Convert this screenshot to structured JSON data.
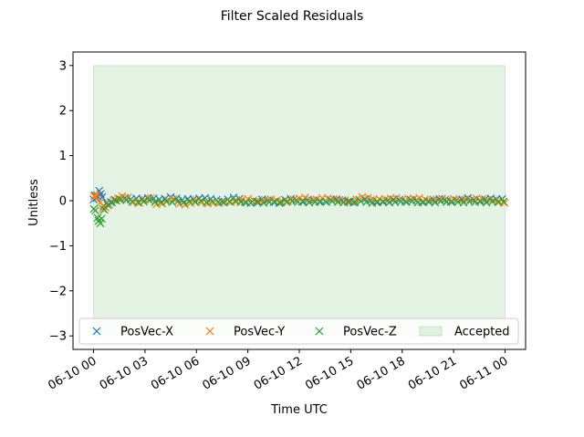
{
  "chart_data": {
    "type": "scatter",
    "title": "Filter Scaled Residuals",
    "xlabel": "Time UTC",
    "ylabel": "Unitless",
    "x_start": "2020-06-10 00:00",
    "x_end": "2020-06-11 00:00",
    "xlim": [
      "2020-06-09 22:48",
      "2020-06-11 01:12"
    ],
    "ylim": [
      -3.3,
      3.3
    ],
    "x_ticks": [
      {
        "t": "2020-06-10 00:00",
        "label": "06-10 00"
      },
      {
        "t": "2020-06-10 03:00",
        "label": "06-10 03"
      },
      {
        "t": "2020-06-10 06:00",
        "label": "06-10 06"
      },
      {
        "t": "2020-06-10 09:00",
        "label": "06-10 09"
      },
      {
        "t": "2020-06-10 12:00",
        "label": "06-10 12"
      },
      {
        "t": "2020-06-10 15:00",
        "label": "06-10 15"
      },
      {
        "t": "2020-06-10 18:00",
        "label": "06-10 18"
      },
      {
        "t": "2020-06-10 21:00",
        "label": "06-10 21"
      },
      {
        "t": "2020-06-11 00:00",
        "label": "06-11 00"
      }
    ],
    "y_ticks": [
      3,
      2,
      1,
      0,
      -1,
      -2,
      -3
    ],
    "y_tick_labels": [
      "3",
      "2",
      "1",
      "0",
      "−1",
      "−2",
      "−3"
    ],
    "accepted_band": {
      "name": "Accepted",
      "ymin": -3,
      "ymax": 3,
      "x_from": "2020-06-10 00:00",
      "x_to": "2020-06-11 00:00",
      "color": "#2ca02c"
    },
    "grid": false,
    "legend": {
      "placement": "lower-center",
      "columns": 4
    },
    "series": [
      {
        "name": "PosVec-X",
        "color": "#1f77b4",
        "points": [
          [
            "2020-06-10 00:00",
            0.03
          ],
          [
            "2020-06-10 00:05",
            0.12
          ],
          [
            "2020-06-10 00:10",
            0.06
          ],
          [
            "2020-06-10 00:15",
            0.1
          ],
          [
            "2020-06-10 00:20",
            0.22
          ],
          [
            "2020-06-10 00:25",
            0.15
          ],
          [
            "2020-06-10 00:30",
            0.08
          ],
          [
            "2020-06-10 00:35",
            -0.12
          ],
          [
            "2020-06-10 00:45",
            -0.05
          ],
          [
            "2020-06-10 01:00",
            -0.03
          ],
          [
            "2020-06-10 01:15",
            0.02
          ],
          [
            "2020-06-10 01:30",
            0.04
          ],
          [
            "2020-06-10 01:50",
            0.06
          ],
          [
            "2020-06-10 02:10",
            0.03
          ],
          [
            "2020-06-10 02:30",
            0.05
          ],
          [
            "2020-06-10 02:50",
            0.04
          ],
          [
            "2020-06-10 03:10",
            0.06
          ],
          [
            "2020-06-10 03:30",
            0.05
          ],
          [
            "2020-06-10 03:50",
            0.03
          ],
          [
            "2020-06-10 04:10",
            0.04
          ],
          [
            "2020-06-10 04:30",
            0.08
          ],
          [
            "2020-06-10 04:50",
            0.05
          ],
          [
            "2020-06-10 05:10",
            0.02
          ],
          [
            "2020-06-10 05:30",
            0.04
          ],
          [
            "2020-06-10 05:50",
            0.03
          ],
          [
            "2020-06-10 06:10",
            0.05
          ],
          [
            "2020-06-10 06:30",
            0.06
          ],
          [
            "2020-06-10 06:50",
            0.04
          ],
          [
            "2020-06-10 07:10",
            0.02
          ],
          [
            "2020-06-10 07:30",
            -0.02
          ],
          [
            "2020-06-10 07:50",
            0.03
          ],
          [
            "2020-06-10 08:10",
            0.07
          ],
          [
            "2020-06-10 08:30",
            0.04
          ],
          [
            "2020-06-10 08:50",
            -0.03
          ],
          [
            "2020-06-10 09:10",
            -0.05
          ],
          [
            "2020-06-10 09:30",
            -0.02
          ],
          [
            "2020-06-10 09:50",
            0.03
          ],
          [
            "2020-06-10 10:10",
            0.01
          ],
          [
            "2020-06-10 10:30",
            -0.03
          ],
          [
            "2020-06-10 10:50",
            -0.05
          ],
          [
            "2020-06-10 11:10",
            0.02
          ],
          [
            "2020-06-10 11:30",
            0.04
          ],
          [
            "2020-06-10 11:50",
            0.01
          ],
          [
            "2020-06-10 12:10",
            -0.02
          ],
          [
            "2020-06-10 12:30",
            0.02
          ],
          [
            "2020-06-10 12:50",
            0.01
          ],
          [
            "2020-06-10 13:10",
            -0.02
          ],
          [
            "2020-06-10 13:30",
            -0.01
          ],
          [
            "2020-06-10 13:50",
            0.02
          ],
          [
            "2020-06-10 14:10",
            0.03
          ],
          [
            "2020-06-10 14:30",
            0.01
          ],
          [
            "2020-06-10 14:50",
            -0.02
          ],
          [
            "2020-06-10 15:10",
            -0.04
          ],
          [
            "2020-06-10 15:30",
            0.02
          ],
          [
            "2020-06-10 15:50",
            0.04
          ],
          [
            "2020-06-10 16:10",
            0.01
          ],
          [
            "2020-06-10 16:30",
            -0.03
          ],
          [
            "2020-06-10 16:50",
            -0.02
          ],
          [
            "2020-06-10 17:10",
            0.01
          ],
          [
            "2020-06-10 17:30",
            0.03
          ],
          [
            "2020-06-10 17:50",
            0.02
          ],
          [
            "2020-06-10 18:10",
            -0.01
          ],
          [
            "2020-06-10 18:30",
            0.02
          ],
          [
            "2020-06-10 18:50",
            0.01
          ],
          [
            "2020-06-10 19:10",
            -0.03
          ],
          [
            "2020-06-10 19:30",
            -0.01
          ],
          [
            "2020-06-10 19:50",
            0.02
          ],
          [
            "2020-06-10 20:10",
            0.04
          ],
          [
            "2020-06-10 20:30",
            0.02
          ],
          [
            "2020-06-10 20:50",
            -0.02
          ],
          [
            "2020-06-10 21:10",
            0.01
          ],
          [
            "2020-06-10 21:30",
            0.03
          ],
          [
            "2020-06-10 21:50",
            0.06
          ],
          [
            "2020-06-10 22:10",
            0.02
          ],
          [
            "2020-06-10 22:30",
            -0.01
          ],
          [
            "2020-06-10 22:50",
            0.03
          ],
          [
            "2020-06-10 23:10",
            0.05
          ],
          [
            "2020-06-10 23:30",
            0.03
          ],
          [
            "2020-06-10 23:50",
            0.04
          ]
        ]
      },
      {
        "name": "PosVec-Y",
        "color": "#ff7f0e",
        "points": [
          [
            "2020-06-10 00:02",
            0.1
          ],
          [
            "2020-06-10 00:07",
            0.08
          ],
          [
            "2020-06-10 00:12",
            0.13
          ],
          [
            "2020-06-10 00:22",
            -0.05
          ],
          [
            "2020-06-10 00:32",
            -0.18
          ],
          [
            "2020-06-10 00:42",
            -0.15
          ],
          [
            "2020-06-10 00:55",
            -0.08
          ],
          [
            "2020-06-10 01:10",
            0.01
          ],
          [
            "2020-06-10 01:25",
            0.05
          ],
          [
            "2020-06-10 01:40",
            0.1
          ],
          [
            "2020-06-10 02:00",
            0.07
          ],
          [
            "2020-06-10 02:20",
            -0.03
          ],
          [
            "2020-06-10 02:40",
            -0.05
          ],
          [
            "2020-06-10 03:00",
            0.02
          ],
          [
            "2020-06-10 03:20",
            0.06
          ],
          [
            "2020-06-10 03:40",
            -0.08
          ],
          [
            "2020-06-10 04:00",
            -0.06
          ],
          [
            "2020-06-10 04:20",
            0.01
          ],
          [
            "2020-06-10 04:40",
            0.04
          ],
          [
            "2020-06-10 05:00",
            -0.07
          ],
          [
            "2020-06-10 05:20",
            -0.09
          ],
          [
            "2020-06-10 05:40",
            -0.05
          ],
          [
            "2020-06-10 06:00",
            0.02
          ],
          [
            "2020-06-10 06:20",
            -0.03
          ],
          [
            "2020-06-10 06:40",
            -0.06
          ],
          [
            "2020-06-10 07:00",
            -0.04
          ],
          [
            "2020-06-10 07:20",
            -0.05
          ],
          [
            "2020-06-10 07:40",
            -0.02
          ],
          [
            "2020-06-10 08:00",
            -0.03
          ],
          [
            "2020-06-10 08:20",
            -0.01
          ],
          [
            "2020-06-10 08:40",
            0.02
          ],
          [
            "2020-06-10 09:00",
            0.04
          ],
          [
            "2020-06-10 09:20",
            0.01
          ],
          [
            "2020-06-10 09:40",
            -0.02
          ],
          [
            "2020-06-10 10:00",
            0.02
          ],
          [
            "2020-06-10 10:20",
            0.03
          ],
          [
            "2020-06-10 10:40",
            0.01
          ],
          [
            "2020-06-10 11:00",
            -0.02
          ],
          [
            "2020-06-10 11:20",
            -0.01
          ],
          [
            "2020-06-10 11:40",
            0.03
          ],
          [
            "2020-06-10 12:00",
            0.05
          ],
          [
            "2020-06-10 12:20",
            0.07
          ],
          [
            "2020-06-10 12:40",
            0.02
          ],
          [
            "2020-06-10 13:00",
            0.03
          ],
          [
            "2020-06-10 13:20",
            0.06
          ],
          [
            "2020-06-10 13:40",
            0.05
          ],
          [
            "2020-06-10 14:00",
            0.04
          ],
          [
            "2020-06-10 14:20",
            0.02
          ],
          [
            "2020-06-10 14:40",
            0.01
          ],
          [
            "2020-06-10 15:00",
            -0.02
          ],
          [
            "2020-06-10 15:20",
            0.03
          ],
          [
            "2020-06-10 15:40",
            0.08
          ],
          [
            "2020-06-10 16:00",
            0.06
          ],
          [
            "2020-06-10 16:20",
            0.02
          ],
          [
            "2020-06-10 16:40",
            0.04
          ],
          [
            "2020-06-10 17:00",
            0.03
          ],
          [
            "2020-06-10 17:20",
            0.05
          ],
          [
            "2020-06-10 17:40",
            0.06
          ],
          [
            "2020-06-10 18:00",
            0.02
          ],
          [
            "2020-06-10 18:20",
            0.05
          ],
          [
            "2020-06-10 18:40",
            0.04
          ],
          [
            "2020-06-10 19:00",
            0.06
          ],
          [
            "2020-06-10 19:20",
            0.03
          ],
          [
            "2020-06-10 19:40",
            0.01
          ],
          [
            "2020-06-10 20:00",
            0.03
          ],
          [
            "2020-06-10 20:20",
            0.05
          ],
          [
            "2020-06-10 20:40",
            0.02
          ],
          [
            "2020-06-10 21:00",
            0.04
          ],
          [
            "2020-06-10 21:20",
            0.01
          ],
          [
            "2020-06-10 21:40",
            0.03
          ],
          [
            "2020-06-10 22:00",
            0.02
          ],
          [
            "2020-06-10 22:20",
            0.05
          ],
          [
            "2020-06-10 22:40",
            0.04
          ],
          [
            "2020-06-10 23:00",
            0.02
          ],
          [
            "2020-06-10 23:20",
            0.01
          ],
          [
            "2020-06-10 23:40",
            -0.02
          ],
          [
            "2020-06-10 23:58",
            -0.05
          ]
        ]
      },
      {
        "name": "PosVec-Z",
        "color": "#2ca02c",
        "points": [
          [
            "2020-06-10 00:01",
            -0.18
          ],
          [
            "2020-06-10 00:06",
            -0.22
          ],
          [
            "2020-06-10 00:14",
            -0.38
          ],
          [
            "2020-06-10 00:18",
            -0.45
          ],
          [
            "2020-06-10 00:24",
            -0.5
          ],
          [
            "2020-06-10 00:28",
            -0.4
          ],
          [
            "2020-06-10 00:38",
            -0.2
          ],
          [
            "2020-06-10 00:50",
            -0.1
          ],
          [
            "2020-06-10 01:05",
            -0.04
          ],
          [
            "2020-06-10 01:20",
            0.0
          ],
          [
            "2020-06-10 01:35",
            0.03
          ],
          [
            "2020-06-10 01:55",
            0.01
          ],
          [
            "2020-06-10 02:15",
            -0.02
          ],
          [
            "2020-06-10 02:35",
            -0.04
          ],
          [
            "2020-06-10 02:55",
            -0.02
          ],
          [
            "2020-06-10 03:15",
            0.01
          ],
          [
            "2020-06-10 03:35",
            -0.03
          ],
          [
            "2020-06-10 03:55",
            -0.04
          ],
          [
            "2020-06-10 04:15",
            -0.02
          ],
          [
            "2020-06-10 04:35",
            -0.03
          ],
          [
            "2020-06-10 04:55",
            -0.01
          ],
          [
            "2020-06-10 05:15",
            -0.04
          ],
          [
            "2020-06-10 05:35",
            -0.02
          ],
          [
            "2020-06-10 05:55",
            -0.03
          ],
          [
            "2020-06-10 06:15",
            -0.01
          ],
          [
            "2020-06-10 06:35",
            -0.04
          ],
          [
            "2020-06-10 06:55",
            -0.02
          ],
          [
            "2020-06-10 07:15",
            -0.03
          ],
          [
            "2020-06-10 07:35",
            -0.04
          ],
          [
            "2020-06-10 07:55",
            -0.02
          ],
          [
            "2020-06-10 08:15",
            -0.01
          ],
          [
            "2020-06-10 08:35",
            -0.03
          ],
          [
            "2020-06-10 08:55",
            -0.04
          ],
          [
            "2020-06-10 09:15",
            -0.02
          ],
          [
            "2020-06-10 09:35",
            -0.03
          ],
          [
            "2020-06-10 09:55",
            -0.05
          ],
          [
            "2020-06-10 10:15",
            -0.03
          ],
          [
            "2020-06-10 10:35",
            -0.02
          ],
          [
            "2020-06-10 10:55",
            -0.04
          ],
          [
            "2020-06-10 11:15",
            -0.03
          ],
          [
            "2020-06-10 11:35",
            -0.01
          ],
          [
            "2020-06-10 11:55",
            -0.03
          ],
          [
            "2020-06-10 12:15",
            -0.02
          ],
          [
            "2020-06-10 12:35",
            -0.04
          ],
          [
            "2020-06-10 12:55",
            -0.03
          ],
          [
            "2020-06-10 13:15",
            -0.02
          ],
          [
            "2020-06-10 13:35",
            -0.03
          ],
          [
            "2020-06-10 13:55",
            -0.01
          ],
          [
            "2020-06-10 14:15",
            -0.03
          ],
          [
            "2020-06-10 14:35",
            -0.04
          ],
          [
            "2020-06-10 14:55",
            -0.02
          ],
          [
            "2020-06-10 15:15",
            -0.03
          ],
          [
            "2020-06-10 15:35",
            -0.01
          ],
          [
            "2020-06-10 15:55",
            -0.03
          ],
          [
            "2020-06-10 16:15",
            -0.05
          ],
          [
            "2020-06-10 16:35",
            -0.03
          ],
          [
            "2020-06-10 16:55",
            -0.02
          ],
          [
            "2020-06-10 17:15",
            -0.04
          ],
          [
            "2020-06-10 17:35",
            -0.03
          ],
          [
            "2020-06-10 17:55",
            -0.02
          ],
          [
            "2020-06-10 18:15",
            -0.03
          ],
          [
            "2020-06-10 18:35",
            -0.01
          ],
          [
            "2020-06-10 18:55",
            -0.04
          ],
          [
            "2020-06-10 19:15",
            -0.03
          ],
          [
            "2020-06-10 19:35",
            -0.02
          ],
          [
            "2020-06-10 19:55",
            -0.04
          ],
          [
            "2020-06-10 20:15",
            -0.01
          ],
          [
            "2020-06-10 20:35",
            -0.03
          ],
          [
            "2020-06-10 20:55",
            -0.02
          ],
          [
            "2020-06-10 21:15",
            -0.03
          ],
          [
            "2020-06-10 21:35",
            -0.04
          ],
          [
            "2020-06-10 21:55",
            -0.02
          ],
          [
            "2020-06-10 22:15",
            -0.03
          ],
          [
            "2020-06-10 22:35",
            -0.01
          ],
          [
            "2020-06-10 22:55",
            -0.04
          ],
          [
            "2020-06-10 23:15",
            -0.02
          ],
          [
            "2020-06-10 23:35",
            -0.03
          ],
          [
            "2020-06-10 23:55",
            -0.02
          ]
        ]
      }
    ]
  }
}
